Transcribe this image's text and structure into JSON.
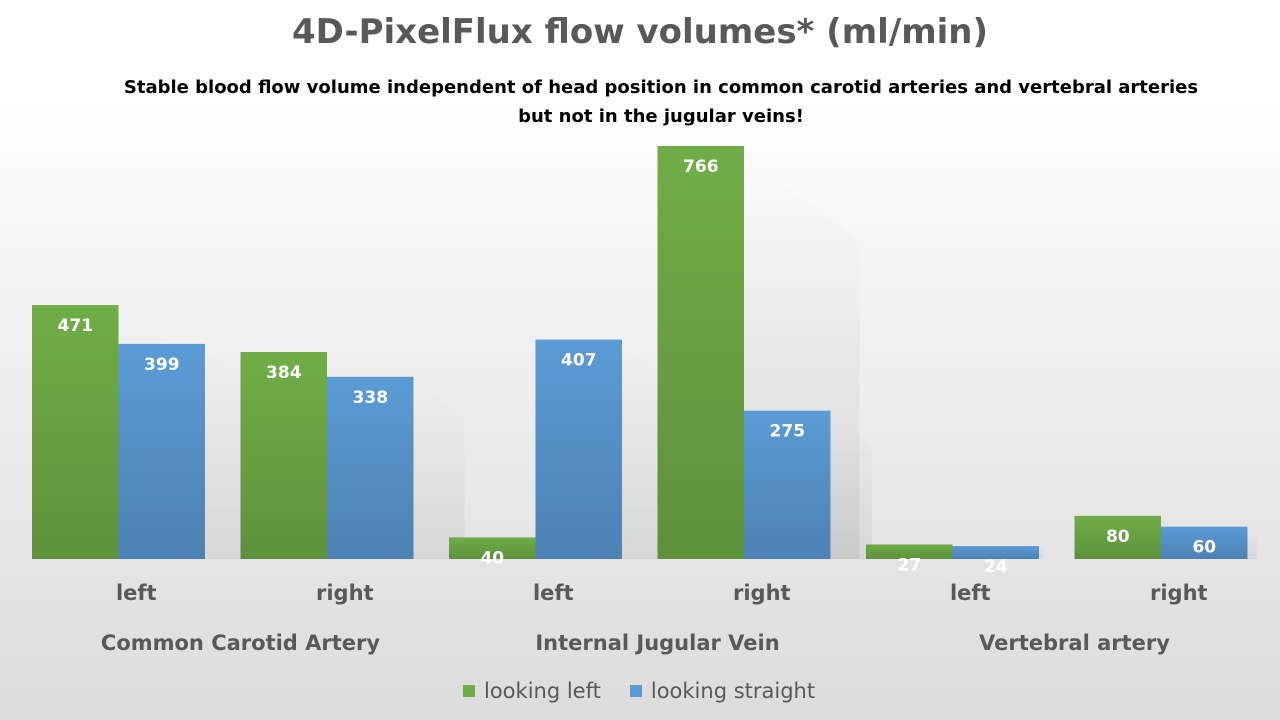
{
  "chart_data": {
    "type": "bar",
    "title": "4D-PixelFlux flow volumes* (ml/min)",
    "subtitle": [
      "Stable blood flow volume independent of head position in common carotid arteries and vertebral arteries",
      "but not in the jugular veins!"
    ],
    "groups": [
      {
        "name": "Common Carotid Artery",
        "categories": [
          "left",
          "right"
        ]
      },
      {
        "name": "Internal Jugular Vein",
        "categories": [
          "left",
          "right"
        ]
      },
      {
        "name": "Vertebral artery",
        "categories": [
          "left",
          "right"
        ]
      }
    ],
    "categories": [
      "left",
      "right",
      "left",
      "right",
      "left",
      "right"
    ],
    "series": [
      {
        "name": "looking left",
        "color": "#70ad47",
        "values": [
          471,
          384,
          40,
          766,
          27,
          80
        ]
      },
      {
        "name": "looking straight",
        "color": "#5b9bd5",
        "values": [
          399,
          338,
          407,
          275,
          24,
          60
        ]
      }
    ],
    "ylim": [
      0,
      766
    ],
    "grid": false,
    "legend_position": "bottom"
  }
}
